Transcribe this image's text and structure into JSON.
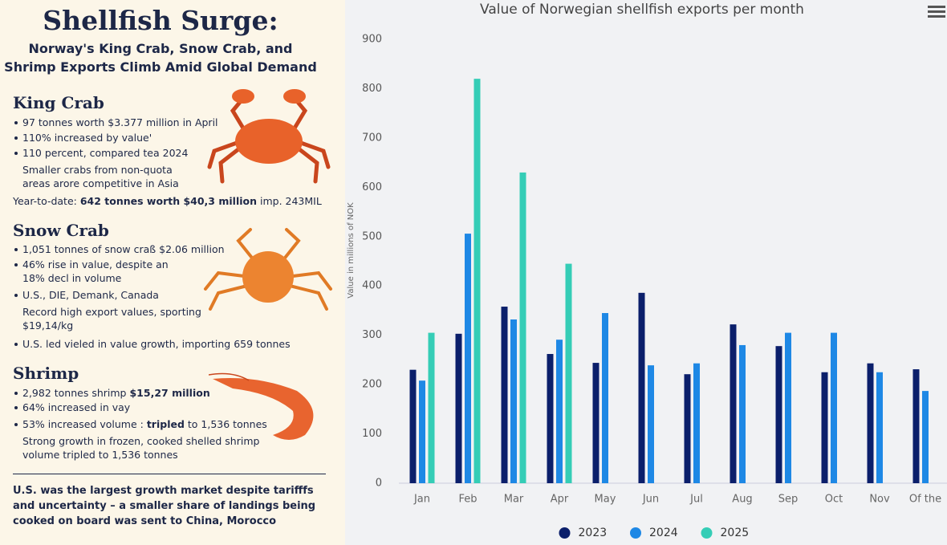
{
  "panel": {
    "title": "Shellfish Surge:",
    "subtitle": [
      "Norway's King Crab, Snow Crab, and",
      "Shrimp Exports Climb Amid Global Demand"
    ],
    "king_crab": {
      "heading": "King Crab",
      "bullets": [
        "97 tonnes worth $3.377 million in April",
        "110% increased by value'",
        "110 percent, compared tea 2024"
      ],
      "note": "Smaller crabs from non-quota areas arore competitive in Asia",
      "ytd": [
        "Year-to-date:",
        "642 tonnes worth $40,3 million",
        "imp. 243MIL"
      ]
    },
    "snow_crab": {
      "heading": "Snow Crab",
      "bullets": [
        "1,051 tonnes of snow craß $2.06 million",
        "46% rise in value, despite an 18% decl in volume",
        "U.S., DIE, Demank, Canada"
      ],
      "note": "Record high export values, sporting $19,14/kg",
      "last_bullet": "U.S. led vieled in value growth, importing 659 tonnes"
    },
    "shrimp": {
      "heading": "Shrimp",
      "bullet_1": [
        "2,982 tonnes shrimp",
        "$15,27 million"
      ],
      "bullet_2": "64% increased in vay",
      "bullet_3": [
        "53% increased volume :",
        "tripled",
        "to 1,536 tonnes"
      ],
      "note": "Strong growth in frozen, cooked shelled shrimp volume tripled to 1,536 tonnes"
    },
    "footer": "U.S. was the largest growth market despite tarifffs and uncertainty – a smaller share of landings being cooked on board was sent to China, Morocco"
  },
  "chart_data": {
    "type": "bar",
    "title": "Value of Norwegian shellfish exports per month",
    "y_label": "Value in millions of NOK",
    "categories": [
      "Jan",
      "Feb",
      "Mar",
      "Apr",
      "May",
      "Jun",
      "Jul",
      "Aug",
      "Sep",
      "Oct",
      "Nov",
      "Of the"
    ],
    "series": [
      {
        "name": "2023",
        "color": "#0b1f6b",
        "values": [
          230,
          303,
          358,
          262,
          244,
          386,
          221,
          322,
          278,
          225,
          243,
          231
        ]
      },
      {
        "name": "2024",
        "color": "#1e88e5",
        "values": [
          208,
          506,
          332,
          291,
          345,
          239,
          243,
          280,
          305,
          305,
          225,
          187
        ]
      },
      {
        "name": "2025",
        "color": "#35cdb6",
        "values": [
          305,
          820,
          630,
          445,
          null,
          null,
          null,
          null,
          null,
          null,
          null,
          null
        ]
      }
    ],
    "ylim": [
      0,
      900
    ],
    "yticks": [
      0,
      100,
      200,
      300,
      400,
      500,
      600,
      700,
      800,
      900
    ],
    "grid": false,
    "legend": "bottom"
  }
}
